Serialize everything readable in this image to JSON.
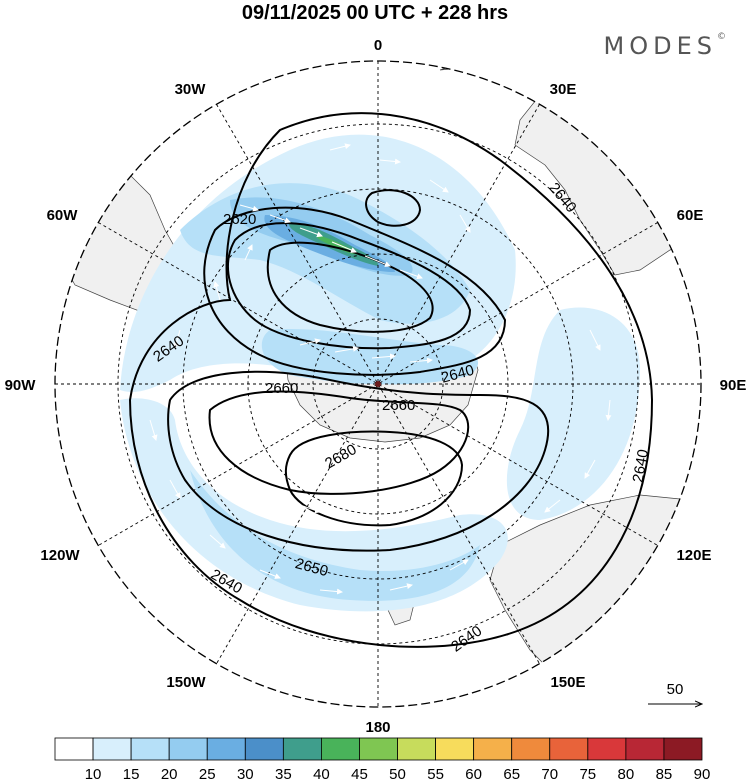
{
  "title": "09/11/2025  00 UTC  + 228 hrs",
  "brand": "MODES",
  "brand_mark": "©",
  "lon_labels": {
    "n": "0",
    "e30": "30E",
    "e60": "60E",
    "e90": "90E",
    "e120": "120E",
    "e150": "150E",
    "s": "180",
    "w150": "150W",
    "w120": "120W",
    "w90": "90W",
    "w60": "60W",
    "w30": "30W"
  },
  "contour_labels": [
    "2620",
    "2640",
    "2640",
    "2640",
    "2640",
    "2640",
    "2650",
    "2660",
    "2660",
    "2680"
  ],
  "vector_reference": "50",
  "colorbar": {
    "ticks": [
      "10",
      "15",
      "20",
      "25",
      "30",
      "35",
      "40",
      "45",
      "50",
      "55",
      "60",
      "65",
      "70",
      "75",
      "80",
      "85",
      "90"
    ],
    "colors": [
      "#ffffff",
      "#d8effc",
      "#b6e0f8",
      "#94ccf0",
      "#6aaee2",
      "#4b8fc9",
      "#3f9e8c",
      "#49b35a",
      "#7fc652",
      "#c7dc5c",
      "#f7dc5c",
      "#f5b04a",
      "#ef8a3c",
      "#e8633a",
      "#d9383a",
      "#b82735",
      "#8c1a24"
    ]
  },
  "colors": {
    "land": "#f0f0f0",
    "contour": "#000000",
    "vector": "#ffffff"
  }
}
